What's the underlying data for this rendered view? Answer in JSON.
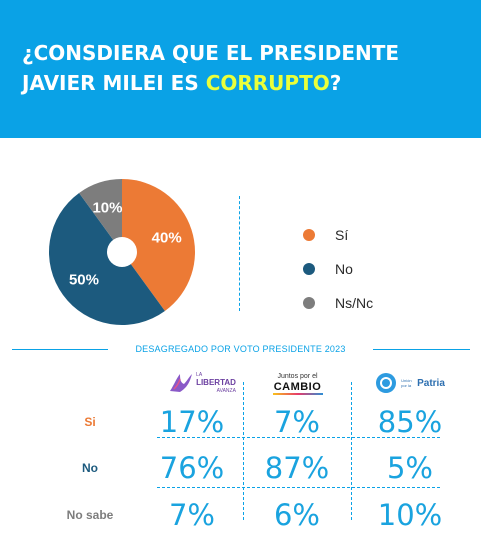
{
  "header": {
    "title_part1": "¿CONSDIERA QUE EL PRESIDENTE",
    "title_part2": "JAVIER MILEI ES ",
    "title_highlight": "CORRUPTO",
    "title_end": "?",
    "bg_color": "#0aa2e6",
    "highlight_color": "#eaff3a"
  },
  "chart_data": [
    {
      "type": "pie",
      "categories": [
        "Sí",
        "No",
        "Ns/Nc"
      ],
      "values": [
        40,
        50,
        10
      ],
      "labels": [
        "40%",
        "50%",
        "10%"
      ],
      "colors": [
        "#ec7a35",
        "#1c5a7e",
        "#7d7d7d"
      ],
      "legend": "right",
      "donut": true
    },
    {
      "type": "table",
      "title": "DESAGREGADO POR VOTO PRESIDENTE 2023",
      "columns": [
        "La Libertad Avanza",
        "Juntos por el Cambio",
        "Unión por la Patria"
      ],
      "rows": [
        "Si",
        "No",
        "No sabe"
      ],
      "values": [
        [
          "17%",
          "7%",
          "85%"
        ],
        [
          "76%",
          "87%",
          "5%"
        ],
        [
          "7%",
          "6%",
          "10%"
        ]
      ],
      "row_colors": [
        "#ec7a35",
        "#1c5a7e",
        "#7d7d7d"
      ]
    }
  ],
  "logos": {
    "lla": {
      "small": "LA",
      "main": "LIBERTAD",
      "sub": "AVANZA"
    },
    "jxc": {
      "line1": "Juntos por el",
      "line2": "CAMBIO"
    },
    "uxp": {
      "badge": "UP",
      "small": "Unión por la",
      "main": "Patria"
    }
  }
}
